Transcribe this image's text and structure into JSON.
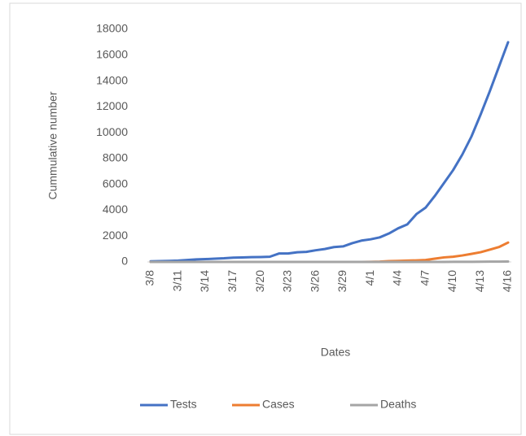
{
  "chart_data": {
    "type": "line",
    "y_label": "Cummulative number",
    "x_label": "Dates",
    "categories": [
      "3/8",
      null,
      null,
      "3/11",
      null,
      null,
      "3/14",
      null,
      null,
      "3/17",
      null,
      null,
      "3/20",
      null,
      null,
      "3/23",
      null,
      null,
      "3/26",
      null,
      null,
      "3/29",
      null,
      null,
      "4/1",
      null,
      null,
      "4/4",
      null,
      null,
      "4/7",
      null,
      null,
      "4/10",
      null,
      null,
      "4/13",
      null,
      null,
      "4/16"
    ],
    "series": [
      {
        "name": "Tests",
        "color": "#4472c4",
        "values": [
          50,
          60,
          80,
          100,
          150,
          200,
          220,
          250,
          280,
          330,
          350,
          370,
          380,
          400,
          650,
          650,
          750,
          780,
          900,
          1000,
          1150,
          1200,
          1450,
          1650,
          1750,
          1900,
          2200,
          2600,
          2900,
          3700,
          4200,
          5100,
          6100,
          7100,
          8300,
          9700,
          11400,
          13200,
          15100,
          17000
        ]
      },
      {
        "name": "Cases",
        "color": "#ed7d31",
        "values": [
          0,
          0,
          0,
          0,
          0,
          0,
          0,
          0,
          0,
          0,
          0,
          0,
          0,
          0,
          0,
          0,
          0,
          0,
          0,
          0,
          0,
          0,
          0,
          0,
          10,
          20,
          60,
          80,
          100,
          120,
          150,
          250,
          350,
          400,
          500,
          620,
          750,
          950,
          1150,
          1500
        ]
      },
      {
        "name": "Deaths",
        "color": "#a5a5a5",
        "values": [
          0,
          0,
          0,
          0,
          0,
          0,
          0,
          0,
          0,
          0,
          0,
          0,
          0,
          0,
          0,
          0,
          0,
          0,
          0,
          0,
          0,
          0,
          0,
          0,
          0,
          0,
          0,
          0,
          0,
          0,
          1,
          2,
          3,
          5,
          8,
          10,
          15,
          20,
          25,
          30
        ]
      }
    ],
    "ylim": [
      0,
      18000
    ],
    "yticks": [
      0,
      2000,
      4000,
      6000,
      8000,
      10000,
      12000,
      14000,
      16000,
      18000
    ],
    "grid": false,
    "legend": "bottom"
  }
}
